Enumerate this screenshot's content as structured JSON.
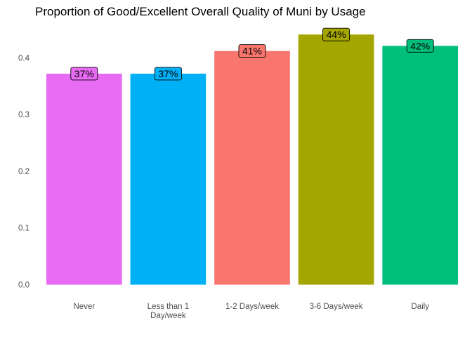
{
  "chart_data": {
    "type": "bar",
    "title": "Proportion of Good/Excellent Overall Quality of Muni by Usage",
    "xlabel": "",
    "ylabel": "",
    "categories": [
      "Never",
      "Less than 1 Day/week",
      "1-2 Days/week",
      "3-6 Days/week",
      "Daily"
    ],
    "category_lines": [
      [
        "Never"
      ],
      [
        "Less than 1",
        "Day/week"
      ],
      [
        "1-2 Days/week"
      ],
      [
        "3-6 Days/week"
      ],
      [
        "Daily"
      ]
    ],
    "values": [
      0.372,
      0.372,
      0.412,
      0.441,
      0.421
    ],
    "data_labels": [
      "37%",
      "37%",
      "41%",
      "44%",
      "42%"
    ],
    "colors": [
      "#E76BF3",
      "#00B0F6",
      "#F8766D",
      "#A3A500",
      "#00BF7D"
    ],
    "yticks": [
      0.0,
      0.1,
      0.2,
      0.3,
      0.4
    ],
    "ytick_labels": [
      "0.0",
      "0.1",
      "0.2",
      "0.3",
      "0.4"
    ],
    "ylim": [
      0,
      0.45
    ],
    "grid": false,
    "legend": "none"
  }
}
